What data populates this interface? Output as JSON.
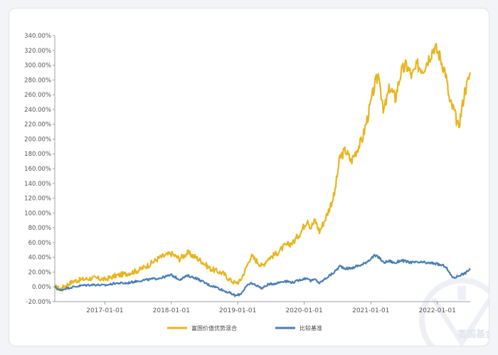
{
  "chart_data": {
    "type": "line",
    "title": "",
    "xlabel": "",
    "ylabel": "",
    "y_unit": "%",
    "ylim": [
      -20,
      340
    ],
    "y_ticks": [
      "340.00%",
      "320.00%",
      "300.00%",
      "280.00%",
      "260.00%",
      "240.00%",
      "220.00%",
      "200.00%",
      "180.00%",
      "160.00%",
      "140.00%",
      "120.00%",
      "100.00%",
      "80.00%",
      "60.00%",
      "40.00%",
      "20.00%",
      "0.00%",
      "-20.00%"
    ],
    "x_range": [
      "2016-04-01",
      "2022-07-01"
    ],
    "x_ticks": [
      "2017-01-01",
      "2018-01-01",
      "2019-01-01",
      "2020-01-01",
      "2021-01-01",
      "2022-01-01"
    ],
    "series": [
      {
        "name": "富国价值优势混合",
        "color": "#e8b51f",
        "points": [
          [
            "2016-04-01",
            0
          ],
          [
            "2016-05-01",
            -3
          ],
          [
            "2016-06-01",
            2
          ],
          [
            "2016-07-15",
            8
          ],
          [
            "2016-09-01",
            10
          ],
          [
            "2016-11-01",
            12
          ],
          [
            "2017-01-01",
            10
          ],
          [
            "2017-03-01",
            15
          ],
          [
            "2017-05-01",
            18
          ],
          [
            "2017-07-01",
            22
          ],
          [
            "2017-09-01",
            30
          ],
          [
            "2017-11-01",
            40
          ],
          [
            "2018-01-01",
            45
          ],
          [
            "2018-02-15",
            38
          ],
          [
            "2018-04-01",
            46
          ],
          [
            "2018-05-15",
            40
          ],
          [
            "2018-06-15",
            35
          ],
          [
            "2018-08-01",
            25
          ],
          [
            "2018-09-01",
            22
          ],
          [
            "2018-10-15",
            18
          ],
          [
            "2018-11-15",
            10
          ],
          [
            "2018-12-20",
            5
          ],
          [
            "2019-01-15",
            8
          ],
          [
            "2019-02-15",
            25
          ],
          [
            "2019-03-15",
            42
          ],
          [
            "2019-04-15",
            35
          ],
          [
            "2019-05-15",
            28
          ],
          [
            "2019-06-15",
            38
          ],
          [
            "2019-08-01",
            45
          ],
          [
            "2019-09-15",
            55
          ],
          [
            "2019-11-01",
            60
          ],
          [
            "2019-12-15",
            75
          ],
          [
            "2020-01-20",
            92
          ],
          [
            "2020-02-05",
            80
          ],
          [
            "2020-03-01",
            90
          ],
          [
            "2020-03-25",
            75
          ],
          [
            "2020-05-01",
            95
          ],
          [
            "2020-06-15",
            125
          ],
          [
            "2020-07-15",
            175
          ],
          [
            "2020-08-15",
            185
          ],
          [
            "2020-09-15",
            170
          ],
          [
            "2020-10-15",
            185
          ],
          [
            "2020-11-15",
            200
          ],
          [
            "2020-12-15",
            230
          ],
          [
            "2021-01-20",
            270
          ],
          [
            "2021-02-15",
            290
          ],
          [
            "2021-03-10",
            235
          ],
          [
            "2021-04-15",
            270
          ],
          [
            "2021-05-15",
            255
          ],
          [
            "2021-06-15",
            290
          ],
          [
            "2021-07-15",
            300
          ],
          [
            "2021-08-15",
            285
          ],
          [
            "2021-09-15",
            300
          ],
          [
            "2021-10-15",
            295
          ],
          [
            "2021-11-15",
            310
          ],
          [
            "2021-12-15",
            325
          ],
          [
            "2022-01-10",
            315
          ],
          [
            "2022-02-15",
            290
          ],
          [
            "2022-03-10",
            250
          ],
          [
            "2022-04-01",
            240
          ],
          [
            "2022-04-27",
            215
          ],
          [
            "2022-05-15",
            240
          ],
          [
            "2022-06-01",
            265
          ],
          [
            "2022-06-15",
            275
          ],
          [
            "2022-07-01",
            290
          ]
        ]
      },
      {
        "name": "比较基准",
        "color": "#4a7fb2",
        "points": [
          [
            "2016-04-01",
            0
          ],
          [
            "2016-05-01",
            -5
          ],
          [
            "2016-06-01",
            -2
          ],
          [
            "2016-07-15",
            0
          ],
          [
            "2016-09-01",
            2
          ],
          [
            "2016-11-01",
            3
          ],
          [
            "2017-01-01",
            2
          ],
          [
            "2017-03-01",
            5
          ],
          [
            "2017-05-01",
            5
          ],
          [
            "2017-07-01",
            8
          ],
          [
            "2017-09-01",
            10
          ],
          [
            "2017-11-01",
            12
          ],
          [
            "2018-01-01",
            16
          ],
          [
            "2018-02-15",
            10
          ],
          [
            "2018-04-01",
            15
          ],
          [
            "2018-05-15",
            12
          ],
          [
            "2018-06-15",
            8
          ],
          [
            "2018-08-01",
            2
          ],
          [
            "2018-09-01",
            0
          ],
          [
            "2018-10-15",
            -5
          ],
          [
            "2018-11-15",
            -8
          ],
          [
            "2018-12-20",
            -12
          ],
          [
            "2019-01-15",
            -10
          ],
          [
            "2019-02-15",
            0
          ],
          [
            "2019-03-15",
            5
          ],
          [
            "2019-04-15",
            2
          ],
          [
            "2019-05-15",
            -2
          ],
          [
            "2019-06-15",
            3
          ],
          [
            "2019-08-01",
            5
          ],
          [
            "2019-09-15",
            8
          ],
          [
            "2019-11-01",
            6
          ],
          [
            "2019-12-15",
            10
          ],
          [
            "2020-01-20",
            12
          ],
          [
            "2020-02-05",
            8
          ],
          [
            "2020-03-01",
            10
          ],
          [
            "2020-03-25",
            5
          ],
          [
            "2020-05-01",
            12
          ],
          [
            "2020-06-15",
            20
          ],
          [
            "2020-07-15",
            28
          ],
          [
            "2020-08-15",
            25
          ],
          [
            "2020-09-15",
            25
          ],
          [
            "2020-10-15",
            28
          ],
          [
            "2020-11-15",
            30
          ],
          [
            "2020-12-15",
            35
          ],
          [
            "2021-01-20",
            42
          ],
          [
            "2021-02-15",
            40
          ],
          [
            "2021-03-10",
            33
          ],
          [
            "2021-04-15",
            35
          ],
          [
            "2021-05-15",
            32
          ],
          [
            "2021-06-15",
            36
          ],
          [
            "2021-07-15",
            34
          ],
          [
            "2021-08-15",
            33
          ],
          [
            "2021-09-15",
            33
          ],
          [
            "2021-10-15",
            33
          ],
          [
            "2021-11-15",
            32
          ],
          [
            "2021-12-15",
            32
          ],
          [
            "2022-01-10",
            30
          ],
          [
            "2022-02-15",
            28
          ],
          [
            "2022-03-10",
            18
          ],
          [
            "2022-04-01",
            12
          ],
          [
            "2022-04-27",
            15
          ],
          [
            "2022-05-15",
            17
          ],
          [
            "2022-06-01",
            18
          ],
          [
            "2022-06-15",
            21
          ],
          [
            "2022-07-01",
            25
          ]
        ]
      }
    ],
    "legend_position": "bottom",
    "grid": false
  },
  "watermark": {
    "text": "富国基金"
  }
}
